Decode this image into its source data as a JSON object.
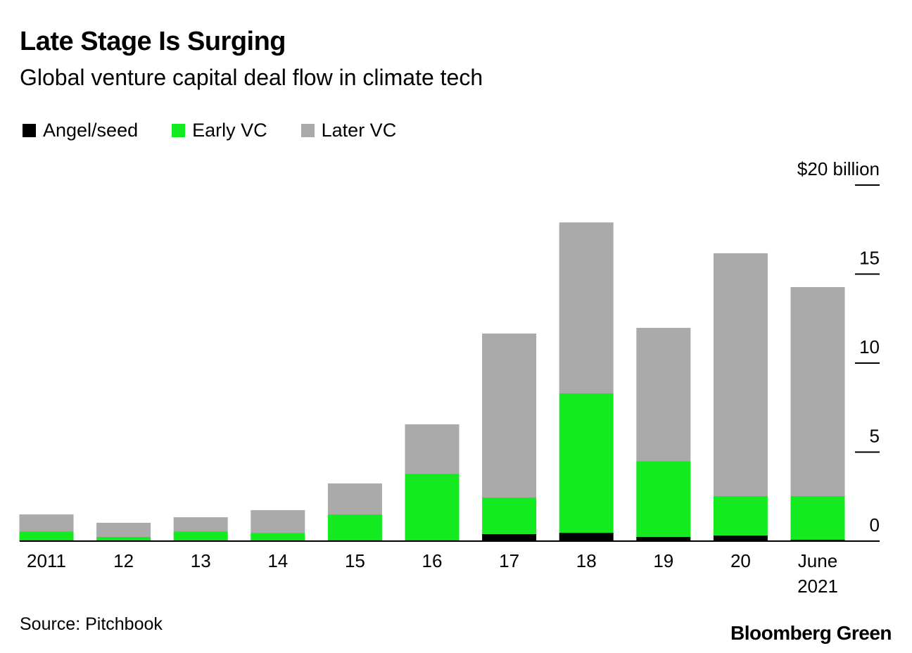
{
  "header": {
    "title": "Late Stage Is Surging",
    "subtitle": "Global venture capital deal flow in climate tech"
  },
  "footer": {
    "source": "Source: Pitchbook",
    "logo": "Bloomberg Green"
  },
  "chart_data": {
    "type": "bar",
    "stacked": true,
    "title": "Late Stage Is Surging",
    "subtitle": "Global venture capital deal flow in climate tech",
    "categories": [
      "2011",
      "12",
      "13",
      "14",
      "15",
      "16",
      "17",
      "18",
      "19",
      "20",
      "June\n2021"
    ],
    "series": [
      {
        "name": "Angel/seed",
        "color": "#000000",
        "values": [
          0.05,
          0.02,
          0.03,
          0.03,
          0.05,
          0.05,
          0.4,
          0.47,
          0.24,
          0.32,
          0.08
        ]
      },
      {
        "name": "Early VC",
        "color": "#13ea1f",
        "values": [
          0.5,
          0.22,
          0.52,
          0.44,
          1.45,
          3.74,
          2.05,
          7.83,
          4.26,
          2.21,
          2.45
        ]
      },
      {
        "name": "Later VC",
        "color": "#aaaaaa",
        "values": [
          0.95,
          0.79,
          0.79,
          1.27,
          1.74,
          2.77,
          9.21,
          9.6,
          7.48,
          13.64,
          11.74
        ]
      }
    ],
    "ylim": [
      0,
      20
    ],
    "yticks": [
      0,
      5,
      10,
      15,
      20
    ],
    "ytick_labels": [
      "0",
      "5",
      "10",
      "15",
      "$20 billion"
    ],
    "yaxis_position": "right",
    "legend_placement": "top-left",
    "grid": false
  }
}
